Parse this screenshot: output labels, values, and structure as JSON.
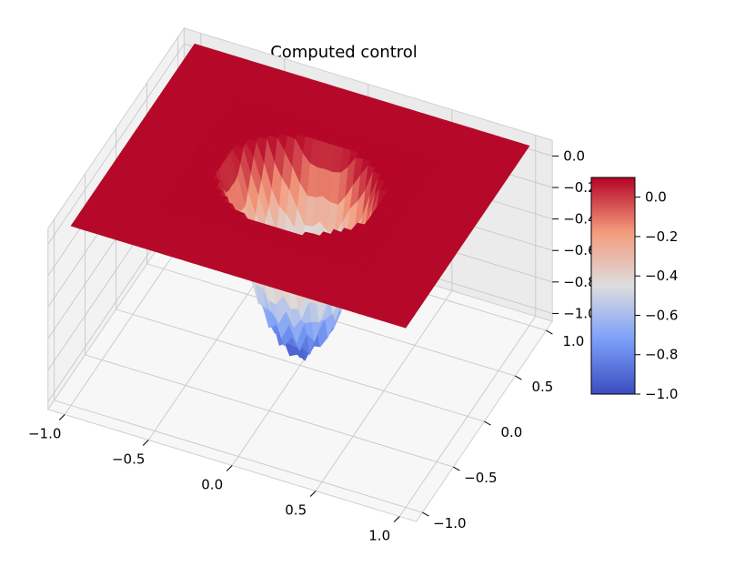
{
  "chart_data": {
    "type": "surface",
    "title": "Computed control",
    "xlabel": "",
    "ylabel": "",
    "zlabel": "",
    "colormap": "coolwarm",
    "colors": {
      "low": "#3b4cc0",
      "mid": "#dddddd",
      "high": "#b40426"
    },
    "grid": true,
    "x_ticks": [
      "−1.0",
      "−0.5",
      "0.0",
      "0.5",
      "1.0"
    ],
    "y_ticks": [
      "−1.0",
      "−0.5",
      "0.0",
      "0.5",
      "1.0"
    ],
    "z_ticks": [
      "−1.0",
      "−0.8",
      "−0.6",
      "−0.4",
      "−0.2",
      "0.0"
    ],
    "colorbar_ticks": [
      "−1.0",
      "−0.8",
      "−0.6",
      "−0.4",
      "−0.2",
      "0.0"
    ],
    "xlim": [
      -1.1,
      1.1
    ],
    "ylim": [
      -1.1,
      1.1
    ],
    "zlim": [
      -1.05,
      0.1
    ],
    "colorbar_range": [
      -1.0,
      0.1
    ],
    "surface": {
      "plateau_value": 0.1,
      "well_min_value": -1.0,
      "well_radius": 0.45,
      "ripple_count": 12
    }
  }
}
